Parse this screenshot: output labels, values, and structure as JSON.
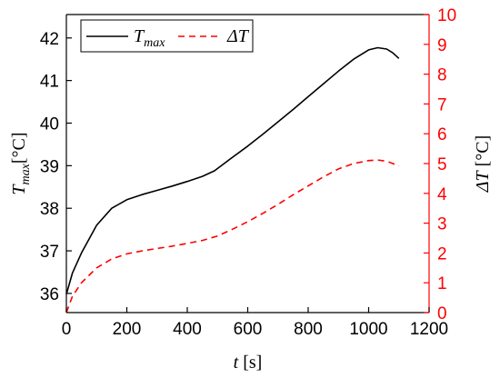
{
  "chart_data": {
    "type": "line",
    "dual_axis": true,
    "grid": false,
    "legend_position": "top-left",
    "x_axis": {
      "range": [
        0,
        1200
      ],
      "ticks": [
        0,
        200,
        400,
        600,
        800,
        1000,
        1200
      ],
      "label_var": "t",
      "label_unit": "[s]",
      "color": "#000000"
    },
    "y_left": {
      "range": [
        35.55,
        42.55
      ],
      "ticks": [
        36,
        37,
        38,
        39,
        40,
        41,
        42
      ],
      "label_var": "T",
      "label_sub": "max",
      "label_unit": "[°C]",
      "color": "#000000"
    },
    "y_right": {
      "range": [
        0,
        10
      ],
      "ticks": [
        0,
        1,
        2,
        3,
        4,
        5,
        6,
        7,
        8,
        9,
        10
      ],
      "label_var": "ΔT",
      "label_unit": "[°C]",
      "color": "#ff0000"
    },
    "series": [
      {
        "name_var": "T",
        "name_sub": "max",
        "axis": "left",
        "color": "#000000",
        "dash": "solid",
        "x": [
          0,
          20,
          50,
          100,
          150,
          200,
          250,
          300,
          350,
          400,
          450,
          490,
          550,
          600,
          650,
          700,
          750,
          800,
          850,
          900,
          950,
          1000,
          1030,
          1060,
          1080,
          1100
        ],
        "y": [
          35.98,
          36.48,
          36.95,
          37.6,
          38.0,
          38.2,
          38.32,
          38.42,
          38.52,
          38.63,
          38.75,
          38.88,
          39.2,
          39.46,
          39.74,
          40.03,
          40.32,
          40.62,
          40.92,
          41.22,
          41.5,
          41.72,
          41.77,
          41.74,
          41.65,
          41.52
        ]
      },
      {
        "name_var": "ΔT",
        "name_sub": "",
        "axis": "right",
        "color": "#ff0000",
        "dash": "dashed",
        "x": [
          0,
          20,
          50,
          100,
          150,
          200,
          250,
          300,
          350,
          400,
          450,
          500,
          550,
          600,
          650,
          700,
          750,
          800,
          850,
          900,
          950,
          1000,
          1030,
          1060,
          1080,
          1100
        ],
        "y": [
          0.0,
          0.55,
          1.0,
          1.5,
          1.8,
          1.97,
          2.07,
          2.15,
          2.23,
          2.32,
          2.42,
          2.57,
          2.8,
          3.05,
          3.33,
          3.63,
          3.95,
          4.25,
          4.55,
          4.82,
          5.0,
          5.1,
          5.12,
          5.08,
          5.0,
          4.92
        ]
      }
    ]
  }
}
